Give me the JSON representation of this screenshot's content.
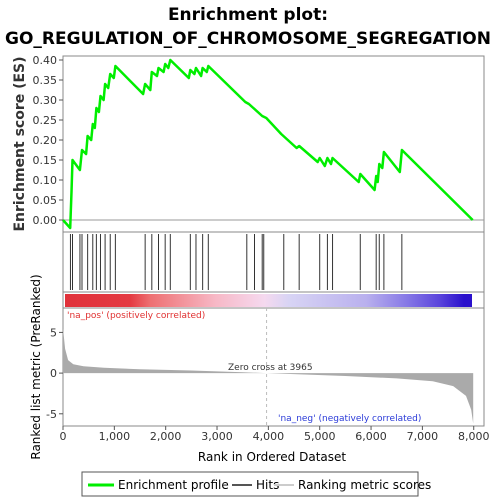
{
  "chart_data": {
    "type": "line",
    "title_line1": "Enrichment plot:",
    "title_line2": "GO_REGULATION_OF_CHROMOSOME_SEGREGATION",
    "es_panel": {
      "ylabel": "Enrichment score (ES)",
      "ylim": [
        -0.03,
        0.41
      ],
      "yticks": [
        "0.00",
        "0.05",
        "0.10",
        "0.15",
        "0.20",
        "0.25",
        "0.30",
        "0.35",
        "0.40"
      ],
      "series_name": "Enrichment profile",
      "color": "#00ee00",
      "points": [
        [
          0,
          0.0
        ],
        [
          140,
          -0.02
        ],
        [
          165,
          0.07
        ],
        [
          185,
          0.15
        ],
        [
          330,
          0.125
        ],
        [
          370,
          0.175
        ],
        [
          450,
          0.165
        ],
        [
          480,
          0.21
        ],
        [
          550,
          0.2
        ],
        [
          580,
          0.24
        ],
        [
          620,
          0.23
        ],
        [
          650,
          0.28
        ],
        [
          700,
          0.27
        ],
        [
          730,
          0.31
        ],
        [
          790,
          0.3
        ],
        [
          820,
          0.34
        ],
        [
          880,
          0.33
        ],
        [
          920,
          0.365
        ],
        [
          990,
          0.355
        ],
        [
          1020,
          0.385
        ],
        [
          1560,
          0.315
        ],
        [
          1600,
          0.34
        ],
        [
          1700,
          0.325
        ],
        [
          1730,
          0.37
        ],
        [
          1830,
          0.36
        ],
        [
          1860,
          0.38
        ],
        [
          1960,
          0.37
        ],
        [
          1990,
          0.39
        ],
        [
          2050,
          0.38
        ],
        [
          2090,
          0.4
        ],
        [
          2450,
          0.355
        ],
        [
          2480,
          0.375
        ],
        [
          2560,
          0.365
        ],
        [
          2590,
          0.38
        ],
        [
          2690,
          0.36
        ],
        [
          2720,
          0.38
        ],
        [
          2800,
          0.37
        ],
        [
          2830,
          0.385
        ],
        [
          3550,
          0.295
        ],
        [
          3620,
          0.29
        ],
        [
          3880,
          0.26
        ],
        [
          3960,
          0.255
        ],
        [
          4250,
          0.215
        ],
        [
          4550,
          0.18
        ],
        [
          4600,
          0.185
        ],
        [
          4960,
          0.145
        ],
        [
          5000,
          0.155
        ],
        [
          5100,
          0.135
        ],
        [
          5150,
          0.155
        ],
        [
          5220,
          0.14
        ],
        [
          5250,
          0.155
        ],
        [
          5760,
          0.095
        ],
        [
          5790,
          0.115
        ],
        [
          6070,
          0.075
        ],
        [
          6100,
          0.11
        ],
        [
          6130,
          0.095
        ],
        [
          6160,
          0.14
        ],
        [
          6220,
          0.13
        ],
        [
          6250,
          0.17
        ],
        [
          6560,
          0.12
        ],
        [
          6600,
          0.175
        ],
        [
          7980,
          0.0
        ]
      ]
    },
    "hits": {
      "series_name": "Hits",
      "positions": [
        145,
        185,
        330,
        370,
        480,
        580,
        650,
        730,
        820,
        920,
        1020,
        1600,
        1730,
        1860,
        1990,
        2090,
        2480,
        2590,
        2720,
        2830,
        3580,
        3730,
        3880,
        3910,
        4300,
        4600,
        5000,
        5150,
        5250,
        5790,
        6100,
        6160,
        6250,
        6600
      ]
    },
    "metric_panel": {
      "ylabel": "Ranked list metric (PreRanked)",
      "ylim": [
        -6.5,
        8.0
      ],
      "yticks": [
        "-5",
        "0",
        "5"
      ],
      "series_name": "Ranking metric scores",
      "color": "#aaaaaa",
      "curve": [
        [
          0,
          5.5
        ],
        [
          40,
          3.0
        ],
        [
          100,
          1.6
        ],
        [
          200,
          1.1
        ],
        [
          400,
          0.85
        ],
        [
          800,
          0.65
        ],
        [
          1500,
          0.48
        ],
        [
          2500,
          0.32
        ],
        [
          3500,
          0.1
        ],
        [
          3965,
          0.0
        ],
        [
          4500,
          -0.12
        ],
        [
          5500,
          -0.35
        ],
        [
          6500,
          -0.65
        ],
        [
          7200,
          -1.0
        ],
        [
          7600,
          -1.6
        ],
        [
          7850,
          -2.8
        ],
        [
          7950,
          -4.5
        ],
        [
          7990,
          -6.2
        ]
      ],
      "zero_cross_label": "Zero cross at 3965",
      "zero_cross": 3965,
      "pos_label": "'na_pos' (positively correlated)",
      "neg_label": "'na_neg' (negatively correlated)"
    },
    "xlabel": "Rank in Ordered Dataset",
    "xlim": [
      0,
      8200
    ],
    "xticks": [
      "0",
      "1,000",
      "2,000",
      "3,000",
      "4,000",
      "5,000",
      "6,000",
      "7,000",
      "8,000"
    ],
    "heat_bar": {
      "stops": [
        [
          "#e0313a",
          0
        ],
        [
          "#e43a42",
          0.16
        ],
        [
          "#ee7072",
          0.21
        ],
        [
          "#f7b8c6",
          0.37
        ],
        [
          "#f5d9ef",
          0.49
        ],
        [
          "#d8d4f4",
          0.55
        ],
        [
          "#b9b0ee",
          0.74
        ],
        [
          "#8678e6",
          0.84
        ],
        [
          "#5a44dc",
          0.92
        ],
        [
          "#2a10cc",
          0.98
        ]
      ]
    },
    "legend": [
      "Enrichment profile",
      "Hits",
      "Ranking metric scores"
    ]
  }
}
